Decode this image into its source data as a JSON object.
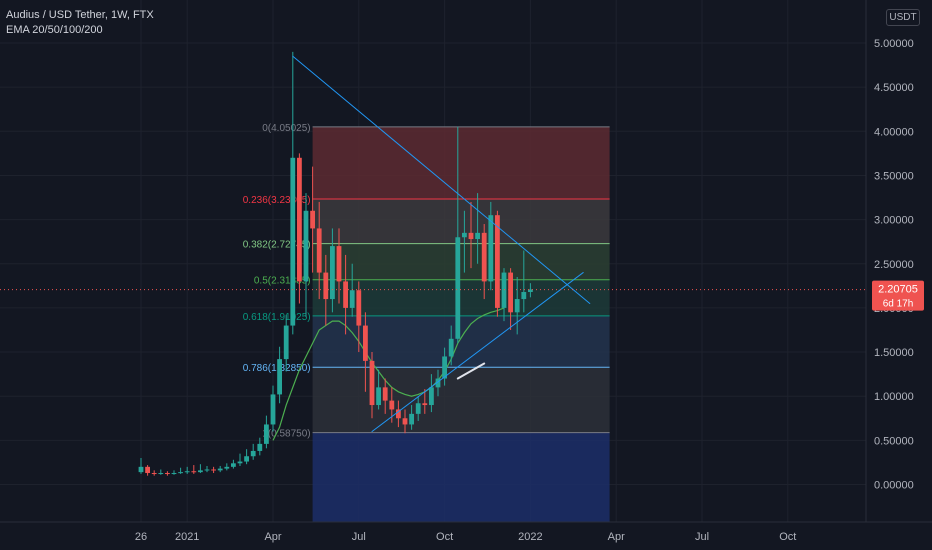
{
  "header": {
    "title": "Audius / USD Tether, 1W, FTX",
    "indicator": "EMA 20/50/100/200",
    "currency": "USDT"
  },
  "price_label": {
    "value": "2.20705",
    "countdown": "6d 17h",
    "color": "#ef5350"
  },
  "colors": {
    "up": "#26a69a",
    "down": "#ef5350",
    "ema": "#4caf50",
    "trendline": "#2196f3",
    "background": "#131722"
  },
  "chart_data": {
    "type": "candlestick",
    "ylim": [
      -0.45,
      5.3
    ],
    "y_ticks": [
      "0.00000",
      "0.50000",
      "1.00000",
      "1.50000",
      "2.00000",
      "2.50000",
      "3.00000",
      "3.50000",
      "4.00000",
      "4.50000",
      "5.00000"
    ],
    "x_ticks": [
      {
        "label": "26",
        "week": 0
      },
      {
        "label": "2021",
        "week": 7
      },
      {
        "label": "Apr",
        "week": 20
      },
      {
        "label": "Jul",
        "week": 33
      },
      {
        "label": "Oct",
        "week": 46
      },
      {
        "label": "2022",
        "week": 59
      },
      {
        "label": "Apr",
        "week": 72
      },
      {
        "label": "Jul",
        "week": 85
      },
      {
        "label": "Oct",
        "week": 98
      }
    ],
    "candles": [
      [
        0.14,
        0.2,
        0.3,
        0.12
      ],
      [
        0.2,
        0.13,
        0.22,
        0.1
      ],
      [
        0.13,
        0.12,
        0.16,
        0.1
      ],
      [
        0.12,
        0.13,
        0.17,
        0.11
      ],
      [
        0.13,
        0.12,
        0.15,
        0.1
      ],
      [
        0.12,
        0.13,
        0.16,
        0.11
      ],
      [
        0.13,
        0.14,
        0.19,
        0.12
      ],
      [
        0.14,
        0.15,
        0.2,
        0.12
      ],
      [
        0.15,
        0.14,
        0.22,
        0.12
      ],
      [
        0.14,
        0.16,
        0.23,
        0.13
      ],
      [
        0.16,
        0.17,
        0.21,
        0.14
      ],
      [
        0.17,
        0.16,
        0.2,
        0.13
      ],
      [
        0.16,
        0.18,
        0.21,
        0.14
      ],
      [
        0.18,
        0.2,
        0.24,
        0.16
      ],
      [
        0.2,
        0.24,
        0.28,
        0.18
      ],
      [
        0.24,
        0.26,
        0.35,
        0.21
      ],
      [
        0.26,
        0.32,
        0.4,
        0.23
      ],
      [
        0.32,
        0.38,
        0.46,
        0.28
      ],
      [
        0.38,
        0.46,
        0.53,
        0.33
      ],
      [
        0.46,
        0.68,
        0.78,
        0.41
      ],
      [
        0.68,
        1.02,
        1.12,
        0.6
      ],
      [
        1.02,
        1.42,
        1.56,
        0.92
      ],
      [
        1.42,
        1.8,
        1.92,
        1.28
      ],
      [
        1.8,
        3.7,
        4.9,
        1.7
      ],
      [
        3.7,
        2.3,
        3.75,
        2.05
      ],
      [
        2.3,
        3.1,
        3.3,
        1.9
      ],
      [
        3.1,
        2.9,
        3.6,
        2.4
      ],
      [
        2.9,
        2.4,
        3.2,
        2.1
      ],
      [
        2.4,
        2.1,
        2.6,
        1.8
      ],
      [
        2.1,
        2.7,
        2.9,
        1.95
      ],
      [
        2.7,
        2.3,
        2.9,
        2.05
      ],
      [
        2.3,
        2.0,
        2.6,
        1.7
      ],
      [
        2.0,
        2.2,
        2.5,
        1.9
      ],
      [
        2.2,
        1.8,
        2.3,
        1.5
      ],
      [
        1.8,
        1.4,
        1.95,
        1.05
      ],
      [
        1.4,
        0.9,
        1.5,
        0.75
      ],
      [
        0.9,
        1.1,
        1.3,
        0.85
      ],
      [
        1.1,
        0.95,
        1.2,
        0.8
      ],
      [
        0.95,
        0.85,
        1.1,
        0.7
      ],
      [
        0.85,
        0.75,
        0.95,
        0.65
      ],
      [
        0.75,
        0.68,
        0.85,
        0.58
      ],
      [
        0.68,
        0.8,
        0.9,
        0.62
      ],
      [
        0.8,
        0.92,
        1.0,
        0.72
      ],
      [
        0.92,
        0.9,
        1.08,
        0.8
      ],
      [
        0.9,
        1.1,
        1.25,
        0.82
      ],
      [
        1.1,
        1.2,
        1.3,
        1.0
      ],
      [
        1.2,
        1.45,
        1.55,
        1.12
      ],
      [
        1.45,
        1.65,
        1.8,
        1.35
      ],
      [
        1.65,
        2.8,
        4.05,
        1.6
      ],
      [
        2.8,
        2.85,
        3.1,
        2.4
      ],
      [
        2.85,
        2.78,
        3.2,
        2.45
      ],
      [
        2.78,
        2.85,
        3.3,
        2.5
      ],
      [
        2.85,
        2.3,
        2.95,
        2.1
      ],
      [
        2.3,
        3.05,
        3.2,
        2.2
      ],
      [
        3.05,
        2.0,
        3.1,
        1.9
      ],
      [
        2.0,
        2.4,
        2.45,
        1.85
      ],
      [
        2.4,
        1.95,
        2.45,
        1.75
      ],
      [
        1.95,
        2.1,
        2.35,
        1.7
      ],
      [
        2.1,
        2.18,
        2.65,
        1.95
      ],
      [
        2.18,
        2.21,
        2.28,
        2.12
      ]
    ],
    "ema": [
      [
        20,
        0.5
      ],
      [
        21,
        0.65
      ],
      [
        22,
        0.9
      ],
      [
        23,
        1.1
      ],
      [
        24,
        1.3
      ],
      [
        25,
        1.45
      ],
      [
        26,
        1.6
      ],
      [
        27,
        1.75
      ],
      [
        28,
        1.8
      ],
      [
        29,
        1.85
      ],
      [
        30,
        1.85
      ],
      [
        31,
        1.8
      ],
      [
        32,
        1.72
      ],
      [
        33,
        1.62
      ],
      [
        34,
        1.5
      ],
      [
        35,
        1.38
      ],
      [
        36,
        1.28
      ],
      [
        37,
        1.18
      ],
      [
        38,
        1.1
      ],
      [
        39,
        1.05
      ],
      [
        40,
        1.02
      ],
      [
        41,
        1.0
      ],
      [
        42,
        1.02
      ],
      [
        43,
        1.05
      ],
      [
        44,
        1.1
      ],
      [
        45,
        1.18
      ],
      [
        46,
        1.28
      ],
      [
        47,
        1.42
      ],
      [
        48,
        1.6
      ],
      [
        49,
        1.72
      ],
      [
        50,
        1.82
      ],
      [
        51,
        1.88
      ],
      [
        52,
        1.92
      ],
      [
        53,
        1.95
      ],
      [
        54,
        1.97
      ],
      [
        55,
        2.0
      ]
    ],
    "fib_levels": [
      {
        "ratio": "0",
        "price": 4.05025,
        "label": "0(4.05025)",
        "color": "#787b86",
        "zone": "#5d2a31"
      },
      {
        "ratio": "0.236",
        "price": 3.23305,
        "label": "0.236(3.23305)",
        "color": "#f23645",
        "zone": "#3c3a3d"
      },
      {
        "ratio": "0.382",
        "price": 2.72745,
        "label": "0.382(2.72745)",
        "color": "#81c784",
        "zone": "#2b3f33"
      },
      {
        "ratio": "0.5",
        "price": 2.31885,
        "label": "0.5(2.31885)",
        "color": "#4caf50",
        "zone": "#1d3b38"
      },
      {
        "ratio": "0.618",
        "price": 1.91025,
        "label": "0.618(1.91025)",
        "color": "#089981",
        "zone": "#23344e"
      },
      {
        "ratio": "0.786",
        "price": 1.3285,
        "label": "0.786(1.32850)",
        "color": "#64b5f6",
        "zone": "#2d3038"
      },
      {
        "ratio": "1",
        "price": 0.5875,
        "label": "1(0.58750)",
        "color": "#787b86",
        "zone": "#1c2e68"
      }
    ],
    "fib_extent": {
      "start_week": 26,
      "end_week": 71,
      "bottom_price": -0.45
    },
    "trendlines": [
      {
        "from": [
          23,
          4.85
        ],
        "to": [
          68,
          2.05
        ],
        "color": "#2196f3"
      },
      {
        "from": [
          35,
          0.6
        ],
        "to": [
          67,
          2.4
        ],
        "color": "#2196f3"
      },
      {
        "from": [
          48,
          1.2
        ],
        "to": [
          52,
          1.37
        ],
        "color": "#e0e3eb",
        "width": 2
      }
    ],
    "last_price": 2.20705
  }
}
